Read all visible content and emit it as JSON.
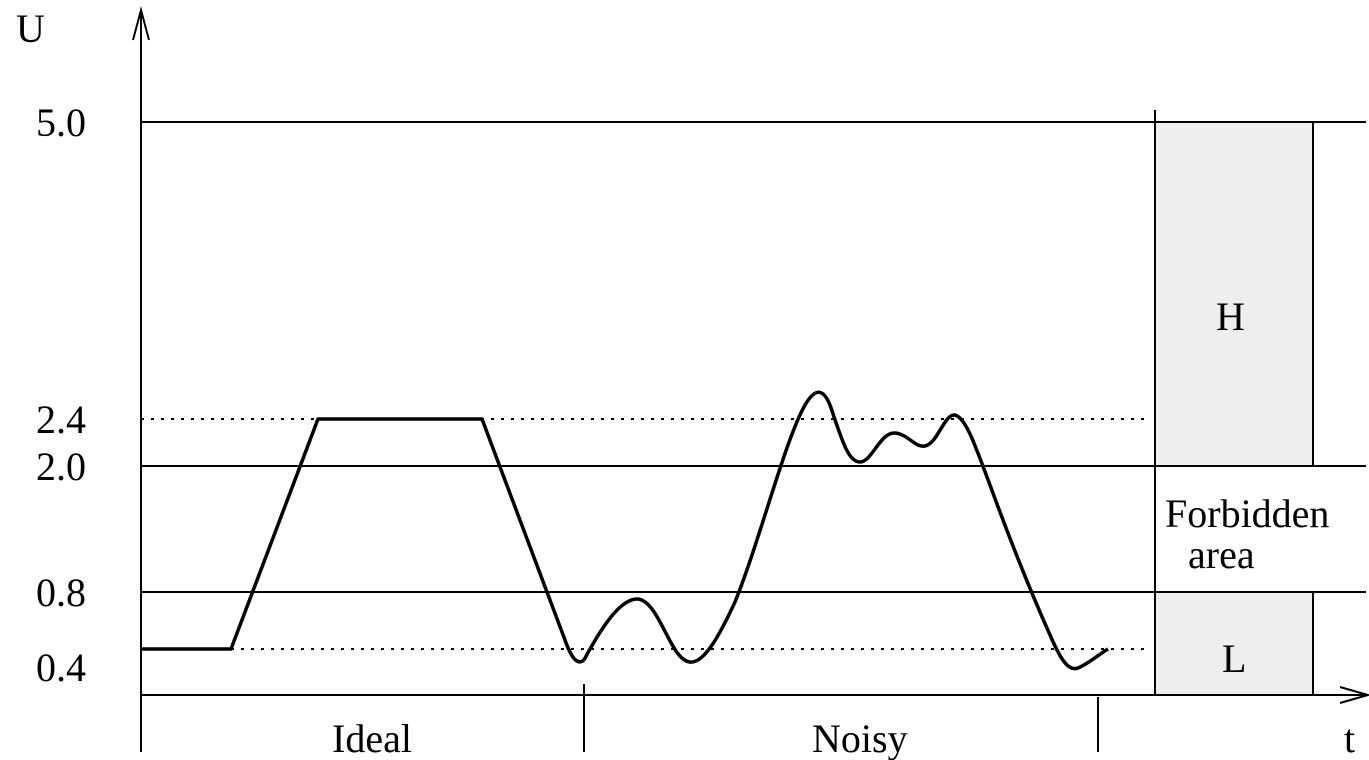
{
  "axes": {
    "y_label": "U",
    "x_label": "t"
  },
  "y_ticks": [
    {
      "value": 5.0,
      "label": "5.0"
    },
    {
      "value": 2.4,
      "label": "2.4"
    },
    {
      "value": 2.0,
      "label": "2.0"
    },
    {
      "value": 0.8,
      "label": "0.8"
    },
    {
      "value": 0.4,
      "label": "0.4"
    }
  ],
  "regions": {
    "high": "H",
    "forbidden_line1": "Forbidden",
    "forbidden_line2": "area",
    "low": "L"
  },
  "sections": {
    "ideal": "Ideal",
    "noisy": "Noisy"
  },
  "colors": {
    "line": "#000000",
    "band_fill": "#eeeeee"
  }
}
